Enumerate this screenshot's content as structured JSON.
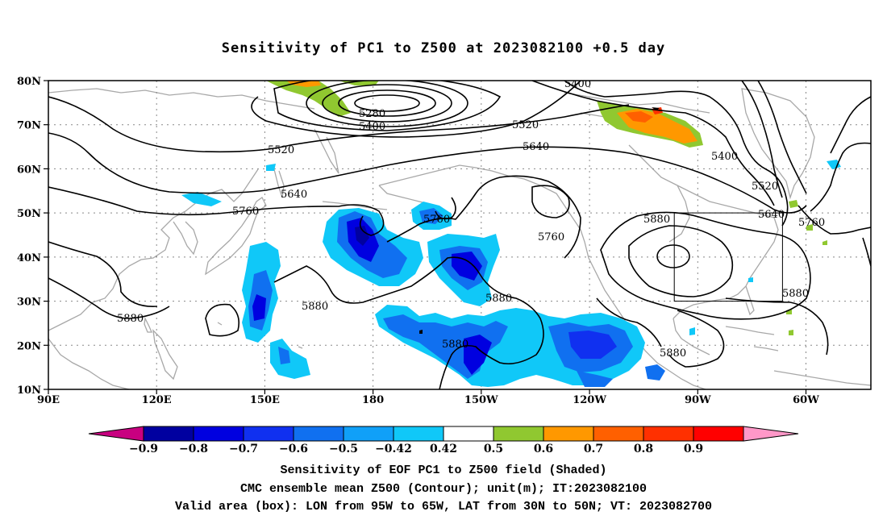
{
  "title": "Sensitivity of PC1 to Z500 at 2023082100 +0.5 day",
  "map": {
    "lat_ticks": [
      "80N",
      "70N",
      "60N",
      "50N",
      "40N",
      "30N",
      "20N",
      "10N"
    ],
    "lon_ticks": [
      "90E",
      "120E",
      "150E",
      "180",
      "150W",
      "120W",
      "90W",
      "60W"
    ],
    "contour_labels": {
      "c5400_top": "5400",
      "c5280": "5280",
      "c5400_left": "5400",
      "c5520_a": "5520",
      "c5520_b": "5520",
      "c5640_a": "5640",
      "c5640_b": "5640",
      "c5400_right": "5400",
      "c5520_right": "5520",
      "c5640_right": "5640",
      "c5760_right": "5760",
      "c5640_mid": "5640",
      "c5760_a": "5760",
      "c5760_b": "5760",
      "c5760_c": "5760",
      "c5880_a": "5880",
      "c5880_b": "5880",
      "c5880_c": "5880",
      "c5880_d": "5880",
      "c5880_e": "5880",
      "c5880_f": "5880",
      "c5880_g": "5880"
    },
    "valid_box": {
      "lon_west": "95W",
      "lon_east": "65W",
      "lat_south": "30N",
      "lat_north": "50N"
    }
  },
  "colorbar": {
    "labels": [
      "−0.9",
      "−0.8",
      "−0.7",
      "−0.6",
      "−0.5",
      "−0.42",
      "0.42",
      "0.5",
      "0.6",
      "0.7",
      "0.8",
      "0.9"
    ],
    "colors": [
      "#c80080",
      "#0000a0",
      "#0000e0",
      "#1030f0",
      "#1070f0",
      "#10a0f8",
      "#10c8f8",
      "#ffffff",
      "#90c830",
      "#ff9800",
      "#ff6000",
      "#ff3000",
      "#ff0000",
      "#ff98c8"
    ]
  },
  "captions": {
    "line1": "Sensitivity of EOF PC1 to Z500 field (Shaded)",
    "line2": "CMC ensemble mean Z500 (Contour); unit(m); IT:2023082100",
    "line3": "Valid area (box): LON from 95W to 65W, LAT from 30N to 50N; VT: 2023082700"
  }
}
